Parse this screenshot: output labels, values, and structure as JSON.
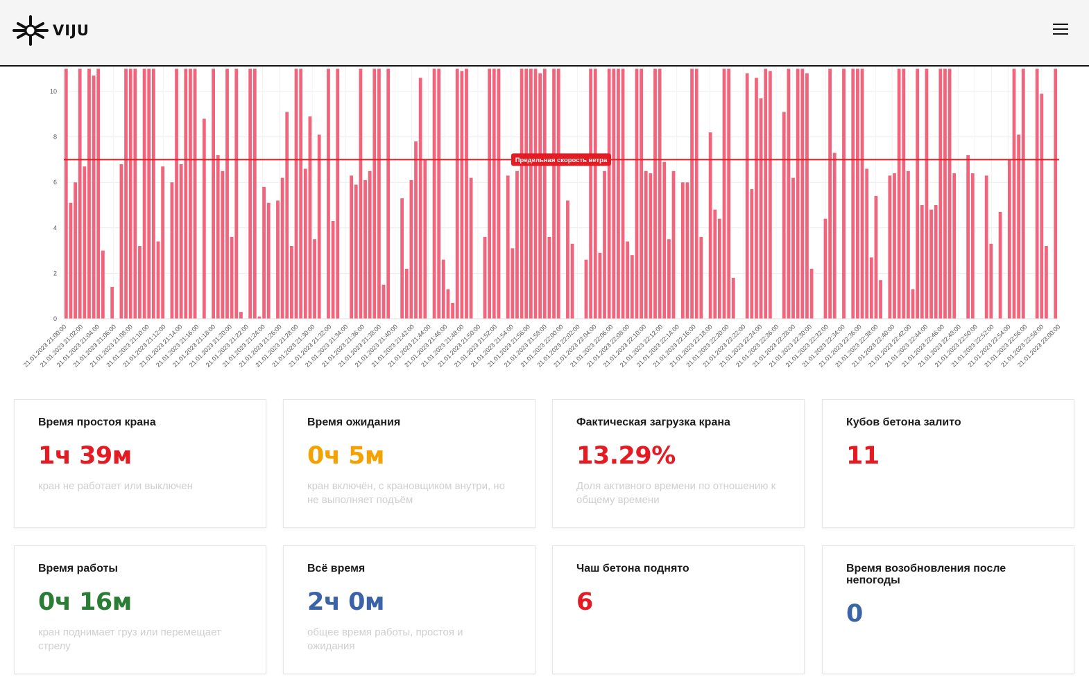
{
  "app": {
    "logo_text": "VIJU",
    "logo_icon": "snowflake-crane-icon",
    "menu_icon": "hamburger-menu-icon"
  },
  "chart_data": {
    "type": "bar",
    "title": "",
    "xlabel": "",
    "ylabel": "",
    "ylim": [
      0,
      11
    ],
    "y_ticks": [
      0,
      2,
      4,
      6,
      8,
      10
    ],
    "grid": true,
    "threshold": {
      "value": 7.0,
      "label": "Предельная скорость ветра",
      "color": "#e41b23"
    },
    "bar_color": "#f0647c",
    "x_tick_labels": [
      "21.01.2023 21:00:00",
      "21.01.2023 21:02:00",
      "21.01.2023 21:04:00",
      "21.01.2023 21:06:00",
      "21.01.2023 21:08:00",
      "21.01.2023 21:10:00",
      "21.01.2023 21:12:00",
      "21.01.2023 21:14:00",
      "21.01.2023 21:16:00",
      "21.01.2023 21:18:00",
      "21.01.2023 21:20:00",
      "21.01.2023 21:22:00",
      "21.01.2023 21:24:00",
      "21.01.2023 21:26:00",
      "21.01.2023 21:28:00",
      "21.01.2023 21:30:00",
      "21.01.2023 21:32:00",
      "21.01.2023 21:34:00",
      "21.01.2023 21:36:00",
      "21.01.2023 21:38:00",
      "21.01.2023 21:40:00",
      "21.01.2023 21:42:00",
      "21.01.2023 21:44:00",
      "21.01.2023 21:46:00",
      "21.01.2023 21:48:00",
      "21.01.2023 21:50:00",
      "21.01.2023 21:52:00",
      "21.01.2023 21:54:00",
      "21.01.2023 21:56:00",
      "21.01.2023 21:58:00",
      "21.01.2023 22:00:00",
      "21.01.2023 22:02:00",
      "21.01.2023 22:04:00",
      "21.01.2023 22:06:00",
      "21.01.2023 22:08:00",
      "21.01.2023 22:10:00",
      "21.01.2023 22:12:00",
      "21.01.2023 22:14:00",
      "21.01.2023 22:16:00",
      "21.01.2023 22:18:00",
      "21.01.2023 22:20:00",
      "21.01.2023 22:22:00",
      "21.01.2023 22:24:00",
      "21.01.2023 22:26:00",
      "21.01.2023 22:28:00",
      "21.01.2023 22:30:00",
      "21.01.2023 22:32:00",
      "21.01.2023 22:34:00",
      "21.01.2023 22:36:00",
      "21.01.2023 22:38:00",
      "21.01.2023 22:40:00",
      "21.01.2023 22:42:00",
      "21.01.2023 22:44:00",
      "21.01.2023 22:46:00",
      "21.01.2023 22:48:00",
      "21.01.2023 22:50:00",
      "21.01.2023 22:52:00",
      "21.01.2023 22:54:00",
      "21.01.2023 22:56:00",
      "21.01.2023 22:58:00",
      "21.01.2023 23:00:00"
    ],
    "values": [
      11,
      5.1,
      6,
      11,
      6.7,
      11,
      10.7,
      11,
      3,
      0,
      1.4,
      0,
      6.8,
      11,
      11,
      11,
      3.2,
      11,
      11,
      11,
      3.4,
      6.7,
      0,
      6,
      11,
      6.8,
      11,
      11,
      11,
      0,
      8.8,
      0,
      11,
      7.2,
      6.5,
      11,
      3.6,
      11,
      0.3,
      0,
      11,
      11,
      0.1,
      5.8,
      5.1,
      0,
      5.2,
      6.2,
      9.1,
      3.2,
      11,
      11,
      6.6,
      8.9,
      3.5,
      8.1,
      0,
      11,
      4.3,
      11,
      0,
      0,
      6.3,
      5.9,
      11,
      6.1,
      6.5,
      11,
      11,
      1.5,
      11,
      0,
      0,
      5.3,
      2.2,
      6.1,
      7.8,
      10.6,
      7,
      0,
      11,
      11,
      2.6,
      1.3,
      0.7,
      11,
      10.9,
      11,
      6.2,
      0,
      0,
      3.6,
      11,
      11,
      11,
      0,
      6.3,
      3.1,
      6.5,
      11,
      11,
      11,
      11,
      10.8,
      11,
      3.6,
      11,
      11,
      0,
      5.2,
      3.3,
      0,
      0,
      2.6,
      11,
      11,
      2.9,
      6.5,
      11,
      11,
      11,
      11,
      3.4,
      2.8,
      11,
      11,
      6.5,
      6.4,
      11,
      11,
      6.9,
      3.5,
      6.5,
      0,
      6,
      6,
      11,
      11,
      3.6,
      0,
      8.2,
      4.8,
      4.4,
      11,
      11,
      1.8,
      0,
      0,
      10.8,
      5.7,
      10.6,
      9.7,
      11,
      10.9,
      0,
      0,
      9.1,
      11,
      6.2,
      11,
      11,
      10.8,
      2.2,
      0,
      0,
      4.4,
      11,
      7.3,
      0,
      11,
      0,
      11,
      11,
      11,
      6.6,
      2.7,
      5.4,
      1.7,
      0,
      6.3,
      6.4,
      11,
      11,
      6.5,
      1.3,
      11,
      5,
      11,
      4.8,
      5,
      11,
      11,
      11,
      6.4,
      0,
      0,
      7.2,
      6.4,
      0,
      0,
      6.3,
      3.3,
      0,
      4.7,
      0,
      7,
      11,
      8.1,
      11,
      0,
      0,
      11,
      9.9,
      3.2,
      0,
      11
    ]
  },
  "cards": [
    {
      "title": "Время простоя крана",
      "value": "1ч 39м",
      "description": "кран не работает или выключен",
      "color": "#e41b23"
    },
    {
      "title": "Время ожидания",
      "value": "0ч 5м",
      "description": "кран включён, с крановщиком внутри, но не выполняет подъём",
      "color": "#f5a200"
    },
    {
      "title": "Фактическая загрузка крана",
      "value": "13.29%",
      "description": "Доля активного времени по отношению к общему времени",
      "color": "#e41b23"
    },
    {
      "title": "Кубов бетона залито",
      "value": "11",
      "description": "",
      "color": "#e41b23"
    },
    {
      "title": "Время работы",
      "value": "0ч 16м",
      "description": "кран поднимает груз или перемещает стрелу",
      "color": "#2a7d34"
    },
    {
      "title": "Всё время",
      "value": "2ч 0м",
      "description": "общее время работы, простоя и ожидания",
      "color": "#3a63a8"
    },
    {
      "title": "Чаш бетона поднято",
      "value": "6",
      "description": "",
      "color": "#e41b23"
    },
    {
      "title": "Время возобновления после непогоды",
      "value": "0",
      "description": "",
      "color": "#3a63a8"
    }
  ]
}
